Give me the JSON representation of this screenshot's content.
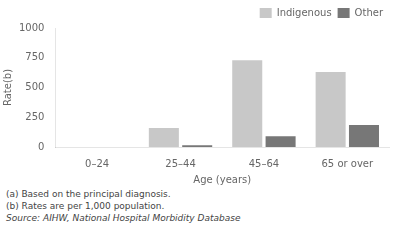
{
  "chart_data": {
    "type": "bar",
    "categories": [
      "0–24",
      "25–44",
      "45–64",
      "65 or over"
    ],
    "series": [
      {
        "name": "Indigenous",
        "color": "#c8c8c8",
        "values": [
          0,
          160,
          730,
          630
        ]
      },
      {
        "name": "Other",
        "color": "#777777",
        "values": [
          0,
          15,
          90,
          185
        ]
      }
    ],
    "xlabel": "Age (years)",
    "ylabel": "Rate(b)",
    "ylim": [
      0,
      1000
    ],
    "yticks": [
      0,
      250,
      500,
      750,
      1000
    ],
    "grid": false,
    "legend": "upper right",
    "annotations": [
      "(a) Based on the principal diagnosis.",
      "(b) Rates are per 1,000 population.",
      "Source: AIHW, National Hospital Morbidity Database"
    ]
  }
}
